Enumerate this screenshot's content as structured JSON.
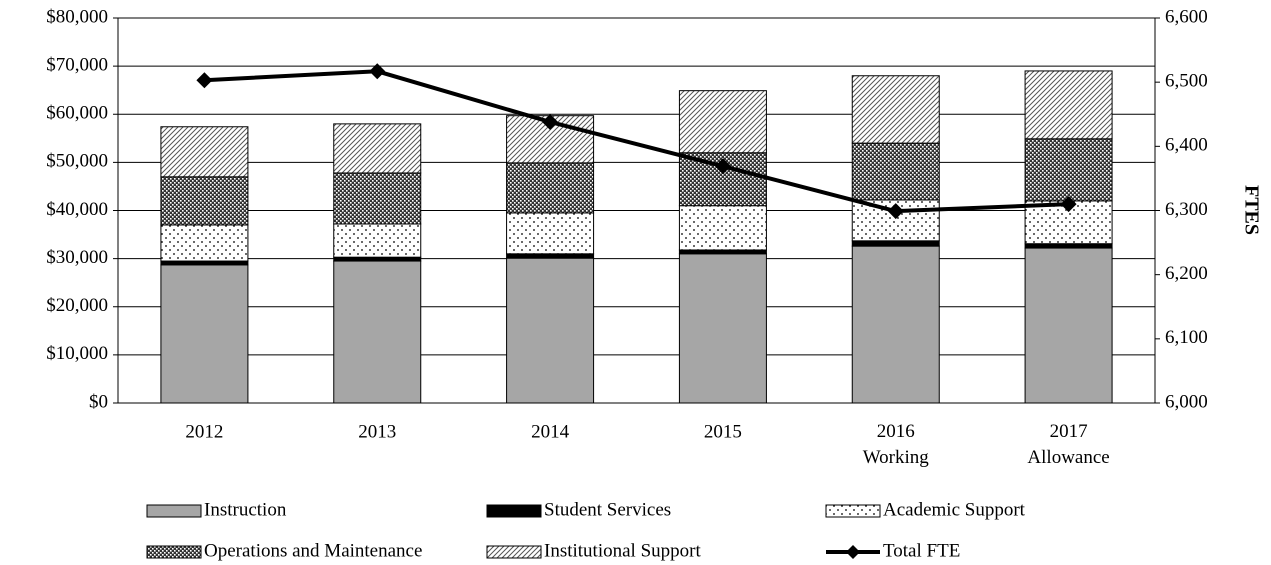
{
  "chart_data": {
    "type": "bar",
    "categories": [
      "2012",
      "2013",
      "2014",
      "2015",
      "2016 Working",
      "2017 Allowance"
    ],
    "series": [
      {
        "name": "Instruction",
        "color": "#a6a6a6",
        "pattern": "solid",
        "values": [
          28700,
          29500,
          30100,
          31000,
          32600,
          32200
        ]
      },
      {
        "name": "Student Services",
        "color": "#000000",
        "pattern": "solid",
        "values": [
          800,
          800,
          900,
          800,
          1100,
          900
        ]
      },
      {
        "name": "Academic Support",
        "color": "#000000",
        "pattern": "dots",
        "values": [
          7500,
          6900,
          8500,
          9200,
          8500,
          8900
        ]
      },
      {
        "name": "Operations and Maintenance",
        "color": "#000000",
        "pattern": "crosshatch",
        "values": [
          10000,
          10600,
          10400,
          11000,
          11800,
          12900
        ]
      },
      {
        "name": "Institutional Support",
        "color": "#000000",
        "pattern": "diagonal",
        "values": [
          10400,
          10200,
          9800,
          12900,
          14000,
          14100
        ]
      },
      {
        "name": "Total FTE",
        "color": "#000000",
        "type": "line",
        "axis": "y2",
        "values": [
          6503,
          6517,
          6438,
          6369,
          6299,
          6310
        ]
      }
    ],
    "ylim": [
      0,
      80000
    ],
    "yticks": [
      {
        "value": 0,
        "label": "$0"
      },
      {
        "value": 10000,
        "label": "$10,000"
      },
      {
        "value": 20000,
        "label": "$20,000"
      },
      {
        "value": 30000,
        "label": "$30,000"
      },
      {
        "value": 40000,
        "label": "$40,000"
      },
      {
        "value": 50000,
        "label": "$50,000"
      },
      {
        "value": 60000,
        "label": "$60,000"
      },
      {
        "value": 70000,
        "label": "$70,000"
      },
      {
        "value": 80000,
        "label": "$80,000"
      }
    ],
    "y2label": "FTES",
    "y2lim": [
      6000,
      6600
    ],
    "y2ticks": [
      {
        "value": 6000,
        "label": "6,000"
      },
      {
        "value": 6100,
        "label": "6,100"
      },
      {
        "value": 6200,
        "label": "6,200"
      },
      {
        "value": 6300,
        "label": "6,300"
      },
      {
        "value": 6400,
        "label": "6,400"
      },
      {
        "value": 6500,
        "label": "6,500"
      },
      {
        "value": 6600,
        "label": "6,600"
      }
    ],
    "grid": true,
    "legend": "bottom"
  }
}
